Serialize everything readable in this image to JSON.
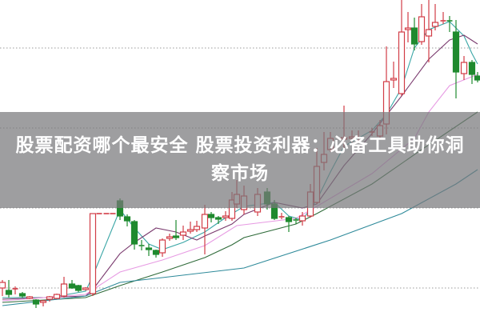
{
  "banner": {
    "title": "股票配资哪个最安全 股票投资利器：必备工具助你洞察市场"
  },
  "chart_data": {
    "type": "candlestick",
    "title": "",
    "xlabel": "",
    "ylabel": "",
    "ylim": [
      0,
      100
    ],
    "grid": true,
    "grid_levels": [
      85,
      60,
      35,
      10
    ],
    "colors": {
      "up": "#d23c46",
      "down": "#1f8a2e",
      "ma5": "#3aa6a6",
      "ma10": "#7a3a6e",
      "ma20": "#e79be3",
      "ma30": "#2f6b3a",
      "ma60": "#2e8a9a",
      "grid": "#9a9a9a"
    },
    "candles": [
      [
        10,
        12.5,
        7.5,
        11.75
      ],
      [
        9.25,
        12.5,
        7,
        8
      ],
      [
        9.75,
        10.5,
        8,
        9.75
      ],
      [
        8.25,
        8.75,
        7,
        7.5
      ],
      [
        6.75,
        7.5,
        6.5,
        7.25
      ],
      [
        6.25,
        6.5,
        3.75,
        5
      ],
      [
        5.5,
        6.25,
        4.25,
        6
      ],
      [
        6.5,
        7.5,
        5.75,
        7.25
      ],
      [
        6.75,
        8.25,
        6.5,
        8
      ],
      [
        7.5,
        13.5,
        7,
        11.25
      ],
      [
        11.25,
        12.5,
        9.75,
        10
      ],
      [
        10.75,
        11,
        8.75,
        9.25
      ],
      [
        9.5,
        10.25,
        9.25,
        10
      ],
      [
        8.25,
        33.25,
        7.5,
        33.25
      ],
      [
        33.25,
        33.25,
        33.25,
        33.25
      ],
      [
        33.25,
        33.25,
        33.25,
        33.25
      ],
      [
        33.25,
        33.25,
        33.25,
        33.25
      ],
      [
        37.25,
        38,
        31.25,
        32.5
      ],
      [
        32.25,
        33,
        29.25,
        31
      ],
      [
        30.75,
        31.25,
        22,
        23.75
      ],
      [
        23.25,
        25,
        21.75,
        23
      ],
      [
        22.5,
        23.75,
        20,
        22
      ],
      [
        21.75,
        22,
        19.5,
        20.5
      ],
      [
        21,
        25.5,
        19.75,
        25
      ],
      [
        25.5,
        27,
        24.75,
        26
      ],
      [
        26.25,
        31.25,
        25,
        25.75
      ],
      [
        26.5,
        29.5,
        25,
        27.5
      ],
      [
        27.75,
        30.75,
        27,
        28.25
      ],
      [
        28.25,
        31,
        27.5,
        29.25
      ],
      [
        28.75,
        36,
        20.5,
        33
      ],
      [
        33,
        33.75,
        30.5,
        32
      ],
      [
        32,
        32.5,
        30,
        31.5
      ],
      [
        32,
        34,
        31,
        32.5
      ],
      [
        31.75,
        40,
        31,
        37.5
      ],
      [
        36.25,
        43.75,
        35,
        39.25
      ],
      [
        34.5,
        42,
        33,
        38.75
      ],
      [
        33.75,
        41.25,
        32.5,
        39.25
      ],
      [
        40,
        41.25,
        34.5,
        36.25
      ],
      [
        36.25,
        37.5,
        31.25,
        31.75
      ],
      [
        32,
        33.5,
        31.5,
        32.25
      ],
      [
        32,
        32.5,
        27.5,
        30.75
      ],
      [
        31.25,
        32,
        30,
        31
      ],
      [
        31,
        33.75,
        29.5,
        32.5
      ],
      [
        32.5,
        42.5,
        32,
        40
      ],
      [
        36.75,
        53.75,
        36.25,
        48
      ],
      [
        49.25,
        58.75,
        46.75,
        51.75
      ],
      [
        53.25,
        58.75,
        52.5,
        56.75
      ],
      [
        56.5,
        67,
        52.5,
        57
      ],
      [
        56.75,
        59.25,
        55.5,
        57.25
      ],
      [
        56.75,
        59.25,
        55.75,
        57
      ],
      [
        58.5,
        60,
        57.5,
        58.75
      ],
      [
        57.5,
        62.5,
        57,
        60.75
      ],
      [
        61.25,
        85.5,
        58,
        74.5
      ],
      [
        75,
        80.75,
        72.5,
        75.5
      ],
      [
        70.75,
        100,
        70,
        90
      ],
      [
        90.75,
        96.25,
        86.75,
        91.25
      ],
      [
        91.25,
        94.5,
        84.25,
        86.25
      ],
      [
        87,
        98.75,
        86,
        94.75
      ],
      [
        88.75,
        100,
        80.5,
        90.75
      ],
      [
        91.75,
        98.75,
        90.5,
        93
      ],
      [
        93.25,
        96.25,
        92.5,
        93.5
      ],
      [
        93.5,
        95,
        90,
        93.25
      ],
      [
        90,
        93.75,
        69.25,
        77.5
      ],
      [
        77,
        82.5,
        75,
        80.5
      ],
      [
        80.5,
        81.25,
        73.75,
        76.75
      ],
      [
        76.25,
        77.5,
        74.25,
        75
      ]
    ],
    "moving_averages": [
      {
        "key": "ma5",
        "points": [
          [
            0,
            7
          ],
          [
            7,
            7
          ],
          [
            12,
            9
          ],
          [
            13,
            13.75
          ],
          [
            17,
            34.5
          ],
          [
            19,
            28.75
          ],
          [
            21,
            23.75
          ],
          [
            23,
            22
          ],
          [
            26,
            24.25
          ],
          [
            29,
            27.5
          ],
          [
            32,
            32
          ],
          [
            35,
            35.5
          ],
          [
            38,
            36.75
          ],
          [
            40,
            32.5
          ],
          [
            42,
            31.25
          ],
          [
            44,
            37.5
          ],
          [
            46,
            46.25
          ],
          [
            47,
            54.25
          ],
          [
            50,
            59.25
          ],
          [
            52,
            64.25
          ],
          [
            54,
            72.5
          ],
          [
            56,
            85
          ],
          [
            58,
            90.75
          ],
          [
            61,
            93.25
          ],
          [
            63,
            88.75
          ],
          [
            64,
            83.25
          ],
          [
            65,
            80
          ]
        ]
      },
      {
        "key": "ma10",
        "points": [
          [
            0,
            6.5
          ],
          [
            12,
            7.5
          ],
          [
            13,
            9.5
          ],
          [
            17,
            20.75
          ],
          [
            19,
            24.25
          ],
          [
            22,
            28.75
          ],
          [
            25,
            27.5
          ],
          [
            27,
            25.75
          ],
          [
            28,
            25
          ],
          [
            29,
            26.25
          ],
          [
            33,
            30
          ],
          [
            35,
            33
          ],
          [
            38,
            36.75
          ],
          [
            42,
            35
          ],
          [
            44,
            36.25
          ],
          [
            47,
            48.25
          ],
          [
            50,
            58.25
          ],
          [
            54,
            70
          ],
          [
            58,
            81.5
          ],
          [
            61,
            87.5
          ],
          [
            63,
            89
          ],
          [
            65,
            86.25
          ]
        ]
      },
      {
        "key": "ma20",
        "points": [
          [
            0,
            6
          ],
          [
            12,
            8
          ],
          [
            17,
            15
          ],
          [
            23,
            18.75
          ],
          [
            29,
            23.25
          ],
          [
            34,
            29.5
          ],
          [
            41,
            31.75
          ],
          [
            44,
            35.5
          ],
          [
            50,
            45.75
          ],
          [
            56,
            56.75
          ],
          [
            58,
            65
          ],
          [
            61,
            73.25
          ],
          [
            65,
            76.75
          ]
        ]
      },
      {
        "key": "ma30",
        "points": [
          [
            0,
            5.5
          ],
          [
            12,
            7
          ],
          [
            17,
            10.75
          ],
          [
            23,
            15
          ],
          [
            29,
            19.5
          ],
          [
            33,
            23.5
          ],
          [
            35,
            25.75
          ],
          [
            41,
            30
          ],
          [
            44,
            33.25
          ],
          [
            50,
            42.5
          ],
          [
            57,
            53.25
          ],
          [
            65,
            65
          ]
        ]
      },
      {
        "key": "ma60",
        "points": [
          [
            0,
            4.5
          ],
          [
            12,
            7.5
          ],
          [
            17,
            11.75
          ],
          [
            23,
            13.25
          ],
          [
            35,
            16.25
          ],
          [
            46,
            25
          ],
          [
            54,
            33.25
          ],
          [
            62,
            42.5
          ],
          [
            65,
            47
          ]
        ]
      }
    ]
  }
}
